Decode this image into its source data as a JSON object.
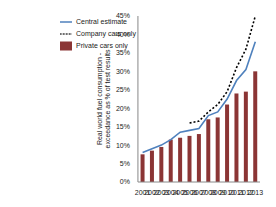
{
  "chart_data": {
    "type": "bar",
    "y_label": "Real world fuel consumption - exceedance as % of test results",
    "categories": [
      "2001",
      "2002",
      "2003",
      "2004",
      "2005",
      "2006",
      "2007",
      "2008",
      "2009",
      "2010",
      "2011",
      "2012",
      "2013"
    ],
    "series": [
      {
        "name": "Private cars only",
        "type": "bar",
        "color": "#8b3535",
        "values": [
          7.5,
          8.5,
          9.5,
          11.5,
          12,
          12.5,
          13,
          17,
          17.5,
          21,
          24,
          24.5,
          30
        ]
      },
      {
        "name": "Company cars only",
        "type": "line",
        "line_style": "dotted",
        "color": "#000000",
        "values": [
          null,
          null,
          null,
          null,
          null,
          16,
          16.5,
          19,
          21,
          24.5,
          31,
          36,
          45
        ]
      },
      {
        "name": "Central estimate",
        "type": "line",
        "line_style": "solid",
        "color": "#4f81bd",
        "values": [
          8,
          9,
          10,
          11.5,
          13.5,
          14,
          14.5,
          18,
          19,
          22.5,
          27.5,
          30.5,
          38
        ]
      }
    ],
    "ylim": [
      0,
      45
    ],
    "yticks": [
      {
        "value": 0,
        "label": "0%"
      },
      {
        "value": 5,
        "label": "5%"
      },
      {
        "value": 10,
        "label": "10%"
      },
      {
        "value": 15,
        "label": "15%"
      },
      {
        "value": 20,
        "label": "20%"
      },
      {
        "value": 25,
        "label": "25%"
      },
      {
        "value": 30,
        "label": "30%"
      },
      {
        "value": 35,
        "label": "35%"
      },
      {
        "value": 40,
        "label": "40%"
      },
      {
        "value": 45,
        "label": "45%"
      }
    ],
    "grid": false,
    "legend": "upper left"
  }
}
